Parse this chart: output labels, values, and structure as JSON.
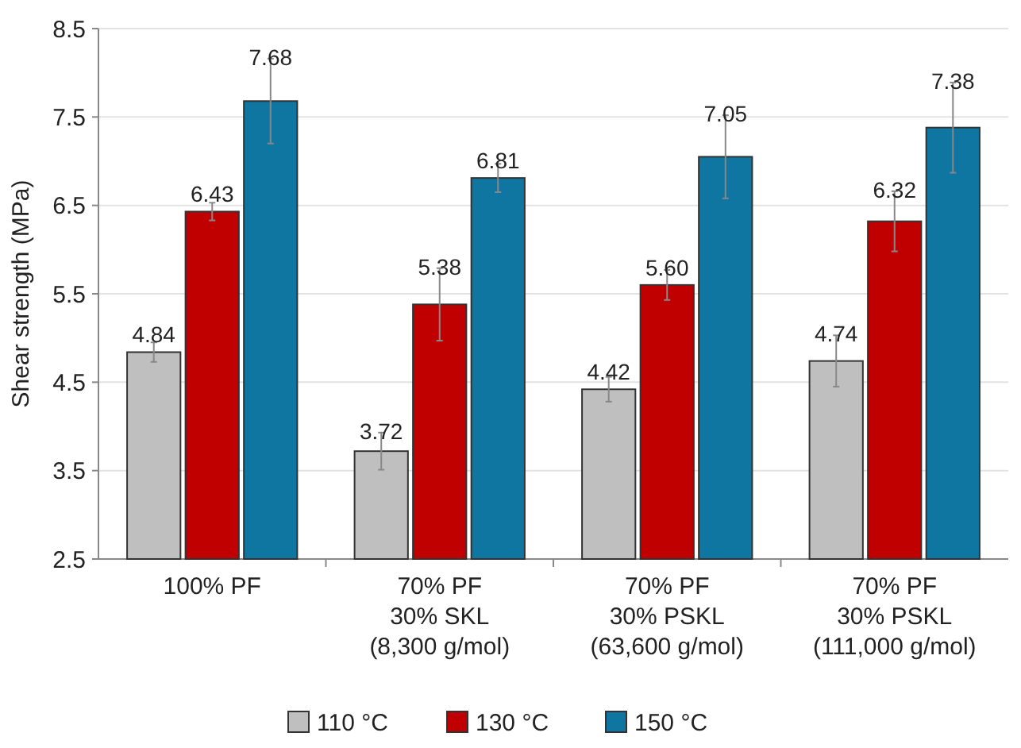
{
  "chart_data": {
    "type": "bar",
    "ylabel": "Shear strength (MPa)",
    "categories": [
      "100% PF",
      "70% PF\n30% SKL\n(8,300 g/mol)",
      "70% PF\n30% PSKL\n(63,600 g/mol)",
      "70% PF\n30% PSKL\n(111,000 g/mol)"
    ],
    "series": [
      {
        "name": "110 °C",
        "color": "#bfbfbf",
        "values": [
          4.84,
          3.72,
          4.42,
          4.74
        ],
        "errors": [
          0.11,
          0.21,
          0.14,
          0.29
        ],
        "value_labels": [
          "4.84",
          "3.72",
          "4.42",
          "4.74"
        ]
      },
      {
        "name": "130 °C",
        "color": "#c00000",
        "values": [
          6.43,
          5.38,
          5.6,
          6.32
        ],
        "errors": [
          0.1,
          0.41,
          0.17,
          0.34
        ],
        "value_labels": [
          "6.43",
          "5.38",
          "5.60",
          "6.32"
        ]
      },
      {
        "name": "150 °C",
        "color": "#0e76a0",
        "values": [
          7.68,
          6.81,
          7.05,
          7.38
        ],
        "errors": [
          0.48,
          0.16,
          0.47,
          0.51
        ],
        "value_labels": [
          "7.68",
          "6.81",
          "7.05",
          "7.38"
        ]
      }
    ],
    "ylim": [
      2.5,
      8.5
    ],
    "yticks": [
      2.5,
      3.5,
      4.5,
      5.5,
      6.5,
      7.5,
      8.5
    ],
    "grid": "y",
    "legend": "bottom"
  }
}
